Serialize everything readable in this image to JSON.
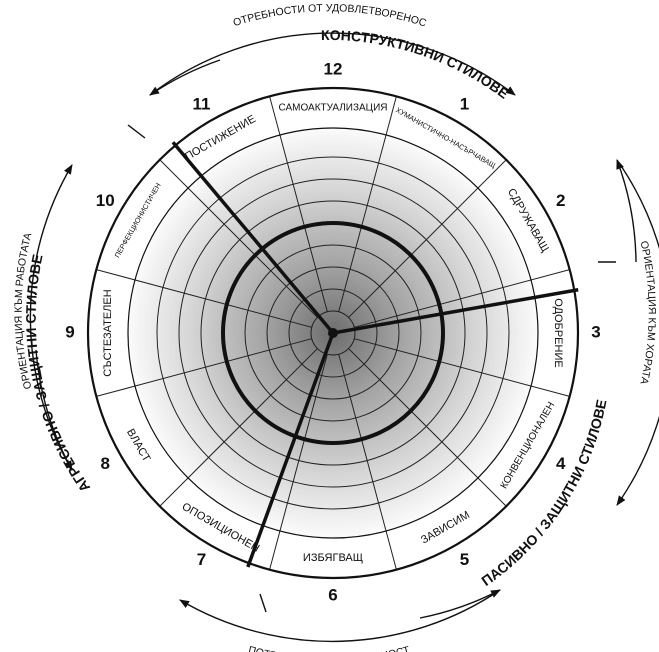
{
  "outer_labels": {
    "top": "ПОТРЕБНОСТИ ОТ УДОВЛЕТВОРЕНОСТ",
    "bottom": "ПОТРЕБНОСТИ ОТ СИГУРНОСТ",
    "left": "ОРИЕНТАЦИЯ КЪМ РАБОТАТА",
    "right": "ОРИЕНТАЦИЯ КЪМ ХОРАТА"
  },
  "style_groups": {
    "constructive": "КОНСТРУКТИВНИ СТИЛОВЕ",
    "passive": "ПАСИВНО / ЗАЩИТНИ СТИЛОВЕ",
    "aggressive": "АГРЕСИВНО / ЗАЩИТНИ СТИЛОВЕ"
  },
  "segments": [
    {
      "number": "12",
      "label": "САМОАКТУАЛИЗАЦИЯ"
    },
    {
      "number": "1",
      "label": "ХУМАНИСТИЧНО-НАСЪРЧАВАЩ"
    },
    {
      "number": "2",
      "label": "СДРУЖАВАЩ"
    },
    {
      "number": "3",
      "label": "ОДОБРЕНИЕ"
    },
    {
      "number": "4",
      "label": "КОНВЕНЦИОНАЛЕН"
    },
    {
      "number": "5",
      "label": "ЗАВИСИМ"
    },
    {
      "number": "6",
      "label": "ИЗБЯГВАЩ"
    },
    {
      "number": "7",
      "label": "ОПОЗИЦИОНЕН"
    },
    {
      "number": "8",
      "label": "ВЛАСТ"
    },
    {
      "number": "9",
      "label": "СЪСТЕЗАТЕЛЕН"
    },
    {
      "number": "10",
      "label": "ПЕРФЕКЦИОНИСТИЧЕН"
    },
    {
      "number": "11",
      "label": "ПОСТИЖЕНИЕ"
    }
  ]
}
